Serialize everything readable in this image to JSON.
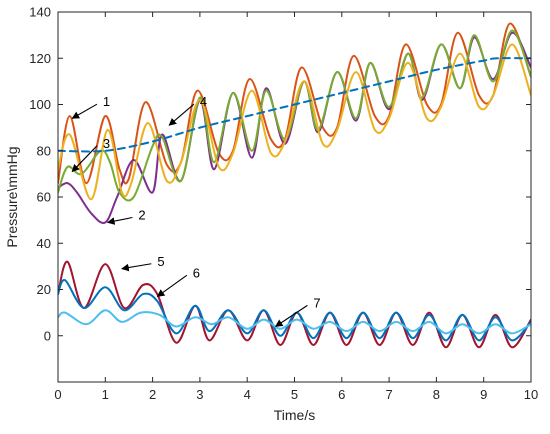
{
  "chart_data": {
    "type": "line",
    "xlabel": "Time/s",
    "ylabel": "Pressure\\mmHg",
    "xlim": [
      0,
      10
    ],
    "ylim": [
      -20,
      140
    ],
    "xticks": [
      0,
      1,
      2,
      3,
      4,
      5,
      6,
      7,
      8,
      9,
      10
    ],
    "yticks": [
      0,
      20,
      40,
      60,
      80,
      100,
      120,
      140
    ],
    "grid": false,
    "legend": "none",
    "series": [
      {
        "id": "s1",
        "color": "#D95319",
        "dashed": false,
        "x": [
          0,
          0.25,
          0.6,
          1.0,
          1.3,
          1.5,
          1.85,
          2.3,
          2.6,
          2.95,
          3.4,
          3.7,
          4.05,
          4.5,
          4.8,
          5.15,
          5.6,
          5.9,
          6.25,
          6.7,
          7.0,
          7.35,
          7.8,
          8.1,
          8.45,
          8.9,
          9.2,
          9.55,
          10.0
        ],
        "y": [
          66,
          95,
          66,
          95,
          72,
          68,
          101,
          74,
          75,
          106,
          79,
          80,
          111,
          85,
          85,
          116,
          90,
          90,
          121,
          95,
          95,
          126,
          100,
          100,
          131,
          104,
          104,
          135,
          112
        ]
      },
      {
        "id": "s2",
        "color": "#7E2F8E",
        "dashed": false,
        "x": [
          0,
          0.2,
          0.4,
          0.7,
          1.0,
          1.25,
          1.6,
          2.0,
          2.2,
          2.6,
          3.0,
          3.3,
          3.7,
          4.1,
          4.4,
          4.8,
          5.2,
          5.5,
          5.9,
          6.3,
          6.6,
          7.0,
          7.4,
          7.7,
          8.1,
          8.5,
          8.8,
          9.2,
          9.6,
          10.0
        ],
        "y": [
          64,
          66,
          62,
          53,
          49,
          60,
          76,
          62,
          87,
          67,
          102,
          72,
          105,
          77,
          107,
          83,
          110,
          88,
          114,
          93,
          118,
          98,
          122,
          102,
          126,
          107,
          129,
          111,
          131,
          116
        ]
      },
      {
        "id": "s3",
        "color": "#77AC30",
        "dashed": false,
        "x": [
          0,
          0.2,
          0.5,
          0.9,
          1.1,
          1.3,
          1.6,
          2.0,
          2.2,
          2.6,
          3.0,
          3.3,
          3.7,
          4.1,
          4.4,
          4.8,
          5.2,
          5.5,
          5.9,
          6.3,
          6.6,
          7.0,
          7.4,
          7.7,
          8.1,
          8.5,
          8.8,
          9.2,
          9.6,
          10.0
        ],
        "y": [
          62,
          73,
          70,
          80,
          75,
          62,
          60,
          82,
          86,
          67,
          103,
          75,
          105,
          80,
          106,
          85,
          110,
          89,
          114,
          94,
          118,
          99,
          122,
          103,
          126,
          107,
          130,
          110,
          132,
          112
        ]
      },
      {
        "id": "s4",
        "color": "#EDB120",
        "dashed": false,
        "x": [
          0,
          0.25,
          0.7,
          1.05,
          1.35,
          1.55,
          1.9,
          2.3,
          2.6,
          3.0,
          3.4,
          3.7,
          4.1,
          4.5,
          4.8,
          5.2,
          5.6,
          5.9,
          6.3,
          6.7,
          7.0,
          7.4,
          7.8,
          8.1,
          8.5,
          8.9,
          9.2,
          9.6,
          10.0
        ],
        "y": [
          72,
          87,
          59,
          89,
          62,
          66,
          92,
          67,
          75,
          102,
          73,
          79,
          106,
          79,
          84,
          110,
          83,
          89,
          114,
          89,
          94,
          118,
          94,
          99,
          122,
          99,
          104,
          126,
          104
        ]
      },
      {
        "id": "s5",
        "color": "#A2142F",
        "dashed": false,
        "x": [
          0,
          0.2,
          0.55,
          1.0,
          1.4,
          1.8,
          2.1,
          2.5,
          2.9,
          3.2,
          3.6,
          4.0,
          4.35,
          4.7,
          5.05,
          5.4,
          5.75,
          6.1,
          6.45,
          6.8,
          7.15,
          7.5,
          7.85,
          8.2,
          8.55,
          8.9,
          9.25,
          9.6,
          10.0
        ],
        "y": [
          18,
          32,
          12,
          31,
          12,
          22,
          18,
          -3,
          13,
          -2,
          11,
          -2,
          11,
          -4,
          10,
          -4,
          10,
          -4,
          10,
          -4,
          10,
          -4,
          10,
          -5,
          9,
          -5,
          9,
          -5,
          7
        ]
      },
      {
        "id": "s6",
        "color": "#0072BD",
        "dashed": false,
        "x": [
          0,
          0.15,
          0.55,
          1.0,
          1.4,
          1.8,
          2.1,
          2.5,
          2.9,
          3.2,
          3.6,
          4.0,
          4.35,
          4.7,
          5.05,
          5.4,
          5.75,
          6.1,
          6.45,
          6.8,
          7.15,
          7.5,
          7.85,
          8.2,
          8.55,
          8.9,
          9.25,
          9.6,
          10.0
        ],
        "y": [
          18,
          24,
          12,
          21,
          11,
          18,
          15,
          1,
          13,
          2,
          11,
          1,
          11,
          0,
          10,
          -1,
          10,
          -1,
          10,
          -1,
          10,
          -1,
          9,
          -2,
          9,
          -2,
          8,
          -2,
          6
        ]
      },
      {
        "id": "s7",
        "color": "#4DBEEE",
        "dashed": false,
        "x": [
          0,
          0.15,
          0.6,
          1.0,
          1.35,
          1.75,
          2.15,
          2.5,
          2.9,
          3.25,
          3.6,
          4.0,
          4.35,
          4.7,
          5.05,
          5.4,
          5.75,
          6.1,
          6.45,
          6.8,
          7.15,
          7.5,
          7.85,
          8.2,
          8.55,
          8.9,
          9.25,
          9.6,
          10.0
        ],
        "y": [
          8,
          10,
          5,
          11,
          6,
          10,
          9,
          4,
          8,
          5,
          8,
          3,
          7,
          3,
          7,
          3,
          6,
          2,
          6,
          2,
          6,
          2,
          6,
          1,
          5,
          1,
          5,
          1,
          5
        ]
      },
      {
        "id": "ref",
        "color": "#0072BD",
        "dashed": true,
        "x": [
          0,
          1.0,
          2.0,
          3.0,
          4.0,
          5.0,
          6.0,
          7.0,
          8.0,
          9.0,
          9.3,
          10.0
        ],
        "y": [
          80,
          80,
          84,
          90,
          95,
          100,
          105,
          110,
          115,
          119,
          120,
          120
        ]
      }
    ],
    "annotations": [
      {
        "label": "1",
        "text_x": 0.95,
        "text_y": 101,
        "tip_x": 0.3,
        "tip_y": 94
      },
      {
        "label": "2",
        "text_x": 1.7,
        "text_y": 52,
        "tip_x": 1.05,
        "tip_y": 49
      },
      {
        "label": "3",
        "text_x": 0.95,
        "text_y": 83,
        "tip_x": 0.3,
        "tip_y": 71
      },
      {
        "label": "4",
        "text_x": 3.0,
        "text_y": 101,
        "tip_x": 2.35,
        "tip_y": 91
      },
      {
        "label": "5",
        "text_x": 2.1,
        "text_y": 32,
        "tip_x": 1.35,
        "tip_y": 29
      },
      {
        "label": "6",
        "text_x": 2.85,
        "text_y": 27,
        "tip_x": 2.1,
        "tip_y": 17
      },
      {
        "label": "7",
        "text_x": 5.4,
        "text_y": 14,
        "tip_x": 4.6,
        "tip_y": 4
      }
    ]
  }
}
